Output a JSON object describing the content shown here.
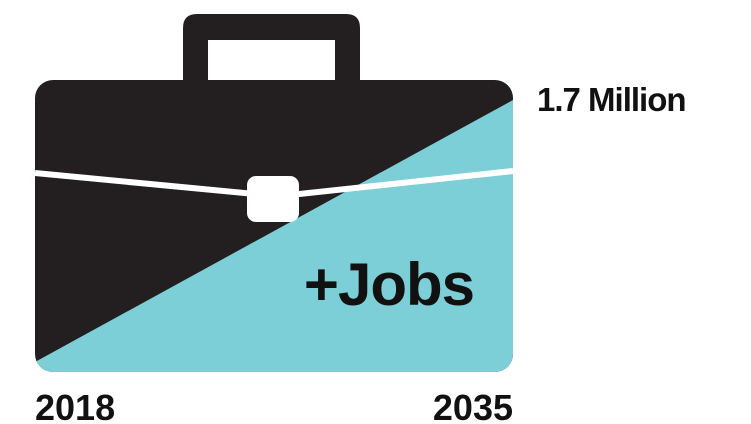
{
  "graphic": {
    "headline": "+Jobs",
    "growth_label": "1.7 Million",
    "start_year": "2018",
    "end_year": "2035",
    "icon": "briefcase-icon",
    "colors": {
      "briefcase_dark": "#231f20",
      "growth_fill": "#7ccfd6",
      "strap": "#ffffff",
      "text": "#111111",
      "background": "#ffffff"
    }
  }
}
